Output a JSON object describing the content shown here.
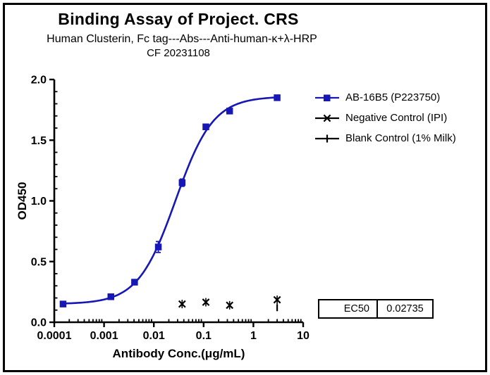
{
  "window": {
    "background": "#ffffff",
    "border_color": "#000000"
  },
  "header": {
    "title": "Binding Assay of Project. CRS",
    "subtitle": "Human Clusterin, Fc tag---Abs---Anti-human-κ+λ-HRP",
    "date_line": "CF 20231108"
  },
  "chart_data": {
    "type": "scatter",
    "x_axis": {
      "label": "Antibody Conc.(μg/mL)",
      "scale": "log",
      "min": 0.0001,
      "max": 10,
      "ticks": [
        "0.0001",
        "0.001",
        "0.01",
        "0.1",
        "1",
        "10"
      ],
      "tick_values": [
        0.0001,
        0.001,
        0.01,
        0.1,
        1,
        10
      ]
    },
    "y_axis": {
      "label": "OD450",
      "scale": "linear",
      "min": 0,
      "max": 2,
      "major_step": 0.5,
      "minor_step": 0.1,
      "ticks": [
        "0.0",
        "0.5",
        "1.0",
        "1.5",
        "2.0"
      ],
      "tick_values": [
        0,
        0.5,
        1.0,
        1.5,
        2.0
      ]
    },
    "series": [
      {
        "name": "AB-16B5 (P223750)",
        "marker": "square",
        "color": "#1717b5",
        "points": [
          {
            "x": 0.00015,
            "y": 0.15
          },
          {
            "x": 0.00137,
            "y": 0.21
          },
          {
            "x": 0.0041,
            "y": 0.33
          },
          {
            "x": 0.0123,
            "y": 0.62,
            "err": 0.045
          },
          {
            "x": 0.037,
            "y": 1.15,
            "err": 0.03
          },
          {
            "x": 0.111,
            "y": 1.61
          },
          {
            "x": 0.333,
            "y": 1.74
          },
          {
            "x": 3,
            "y": 1.85
          }
        ],
        "fit": {
          "model": "4PL",
          "bottom": 0.15,
          "top": 1.86,
          "ec50": 0.02735,
          "hill": 1.15,
          "x_start": 0.00015,
          "x_end": 3
        }
      },
      {
        "name": "Negative Control (IPI)",
        "marker": "x",
        "color": "#000000",
        "points": [
          {
            "x": 0.037,
            "y": 0.15
          },
          {
            "x": 0.111,
            "y": 0.165
          },
          {
            "x": 0.333,
            "y": 0.14
          },
          {
            "x": 3,
            "y": 0.185
          }
        ]
      },
      {
        "name": "Blank Control (1% Milk)",
        "marker": "vline",
        "color": "#000000",
        "points": [
          {
            "x": 3,
            "y": 0.12
          }
        ]
      }
    ]
  },
  "ec50_table": {
    "label": "EC50",
    "value": "0.02735"
  }
}
